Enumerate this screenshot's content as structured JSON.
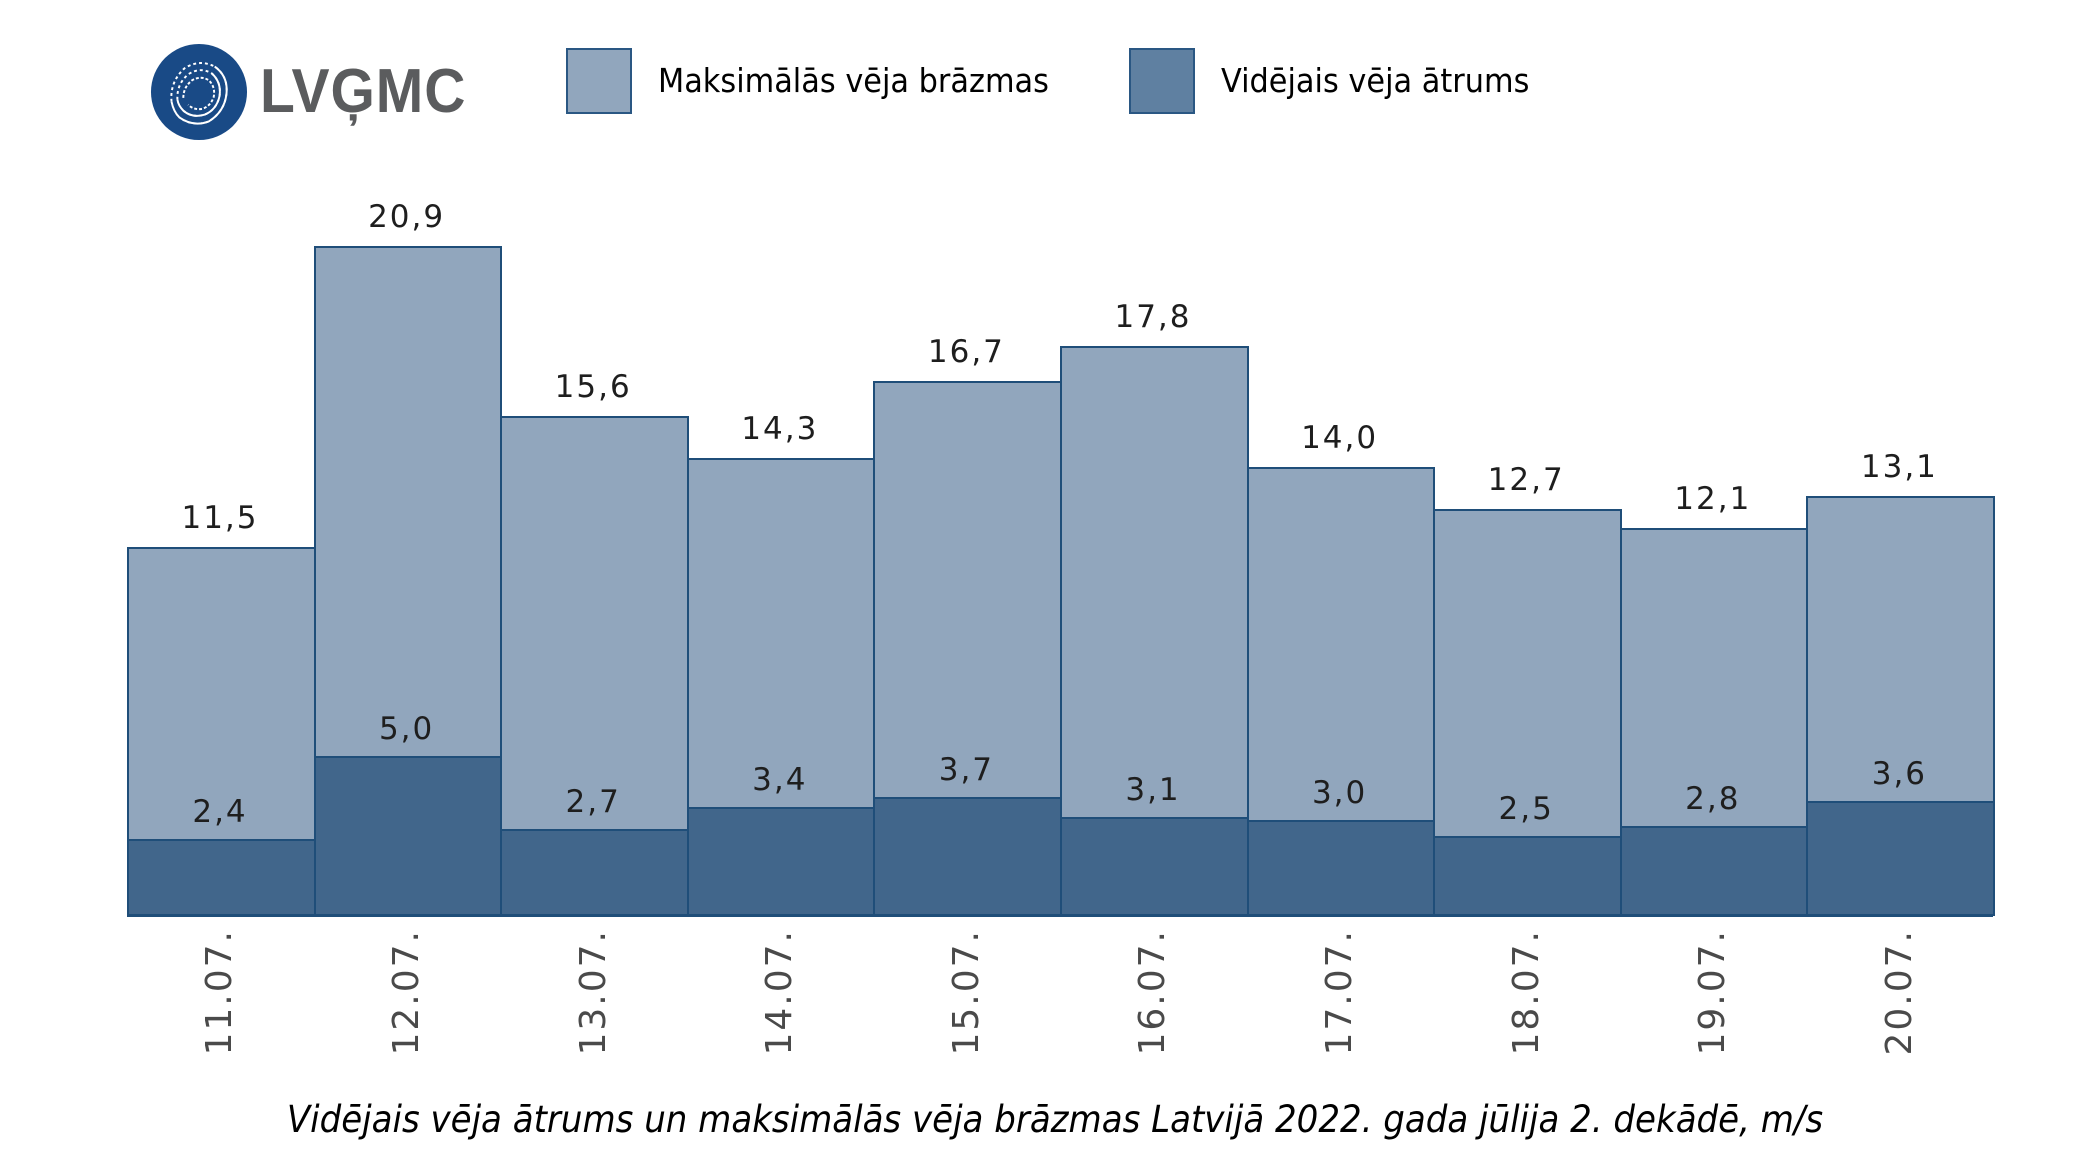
{
  "logo": {
    "text": "LVĢMC",
    "icon": "lvgmc-globe-icon",
    "circle_color": "#194a86",
    "text_color": "#5b5c5e"
  },
  "legend": [
    {
      "label": "Maksimālās vēja brāzmas",
      "color": "#91a6bd"
    },
    {
      "label": "Vidējais vēja ātrums",
      "color": "#5f80a1"
    }
  ],
  "caption": "Vidējais vēja ātrums un maksimālās vēja brāzmas Latvijā 2022. gada jūlija 2. dekādē, m/s",
  "bars": [
    {
      "date": "11.07.",
      "max": 11.5,
      "max_label": "11,5",
      "avg": 2.4,
      "avg_label": "2,4"
    },
    {
      "date": "12.07.",
      "max": 20.9,
      "max_label": "20,9",
      "avg": 5.0,
      "avg_label": "5,0"
    },
    {
      "date": "13.07.",
      "max": 15.6,
      "max_label": "15,6",
      "avg": 2.7,
      "avg_label": "2,7"
    },
    {
      "date": "14.07.",
      "max": 14.3,
      "max_label": "14,3",
      "avg": 3.4,
      "avg_label": "3,4"
    },
    {
      "date": "15.07.",
      "max": 16.7,
      "max_label": "16,7",
      "avg": 3.7,
      "avg_label": "3,7"
    },
    {
      "date": "16.07.",
      "max": 17.8,
      "max_label": "17,8",
      "avg": 3.1,
      "avg_label": "3,1"
    },
    {
      "date": "17.07.",
      "max": 14.0,
      "max_label": "14,0",
      "avg": 3.0,
      "avg_label": "3,0"
    },
    {
      "date": "18.07.",
      "max": 12.7,
      "max_label": "12,7",
      "avg": 2.5,
      "avg_label": "2,5"
    },
    {
      "date": "19.07.",
      "max": 12.1,
      "max_label": "12,1",
      "avg": 2.8,
      "avg_label": "2,8"
    },
    {
      "date": "20.07.",
      "max": 13.1,
      "max_label": "13,1",
      "avg": 3.6,
      "avg_label": "3,6"
    }
  ],
  "chart_data": {
    "type": "bar",
    "title": "Vidējais vēja ātrums un maksimālās vēja brāzmas Latvijā 2022. gada jūlija 2. dekādē, m/s",
    "xlabel": "",
    "ylabel": "m/s",
    "categories": [
      "11.07.",
      "12.07.",
      "13.07.",
      "14.07.",
      "15.07.",
      "16.07.",
      "17.07.",
      "18.07.",
      "19.07.",
      "20.07."
    ],
    "series": [
      {
        "name": "Maksimālās vēja brāzmas",
        "values": [
          11.5,
          20.9,
          15.6,
          14.3,
          16.7,
          17.8,
          14.0,
          12.7,
          12.1,
          13.1
        ],
        "color": "#91a6bd"
      },
      {
        "name": "Vidējais vēja ātrums",
        "values": [
          2.4,
          5.0,
          2.7,
          3.4,
          3.7,
          3.1,
          3.0,
          2.5,
          2.8,
          3.6
        ],
        "color": "#41668b"
      }
    ],
    "overlapped": true,
    "data_labels": true,
    "ylim": [
      0,
      22
    ],
    "grid": false,
    "y_axis_visible": false,
    "legend_position": "top"
  }
}
